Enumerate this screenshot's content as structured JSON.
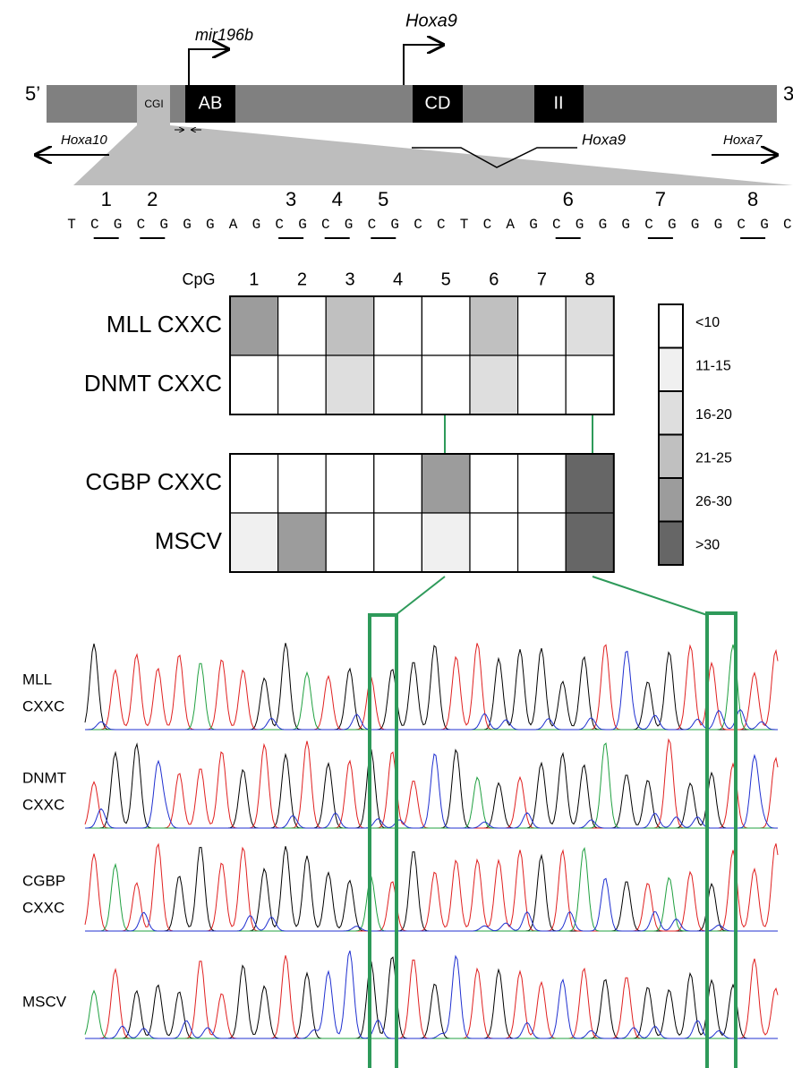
{
  "gene_map": {
    "five_prime": "5’",
    "three_prime": "3",
    "cgi": "CGI",
    "exons": [
      "AB",
      "CD",
      "II"
    ],
    "mir196b": "mir196b",
    "hoxa9_tss": "Hoxa9",
    "hoxa10": "Hoxa10",
    "hoxa9_transcript": "Hoxa9",
    "hoxa7": "Hoxa7"
  },
  "sequence": {
    "cpg_numbers": [
      1,
      2,
      3,
      4,
      5,
      6,
      7,
      8
    ],
    "letters": [
      "T",
      "C",
      "G",
      "C",
      "G",
      "G",
      "G",
      "A",
      "G",
      "C",
      "G",
      "C",
      "G",
      "C",
      "G",
      "C",
      "C",
      "T",
      "C",
      "A",
      "G",
      "C",
      "G",
      "G",
      "G",
      "C",
      "G",
      "G",
      "G",
      "C",
      "G",
      "C"
    ]
  },
  "heatmap": {
    "column_header": "CpG",
    "columns": [
      1,
      2,
      3,
      4,
      5,
      6,
      7,
      8
    ],
    "top_rows": [
      {
        "label": "MLL CXXC",
        "levels": [
          4,
          0,
          3,
          0,
          0,
          3,
          0,
          2
        ]
      },
      {
        "label": "DNMT CXXC",
        "levels": [
          0,
          0,
          2,
          0,
          0,
          2,
          0,
          0
        ]
      }
    ],
    "bottom_rows": [
      {
        "label": "CGBP CXXC",
        "levels": [
          0,
          0,
          0,
          0,
          4,
          0,
          0,
          5
        ]
      },
      {
        "label": "MSCV",
        "levels": [
          1,
          4,
          0,
          0,
          1,
          0,
          0,
          5
        ]
      }
    ],
    "legend": {
      "labels": [
        "<10",
        "11-15",
        "16-20",
        "21-25",
        "26-30",
        ">30"
      ],
      "colors": [
        "#ffffff",
        "#f0f0f0",
        "#dedede",
        "#c0c0c0",
        "#9c9c9c",
        "#666666"
      ]
    }
  },
  "chromatograms": {
    "labels": [
      [
        "MLL",
        "CXXC"
      ],
      [
        "DNMT",
        "CXXC"
      ],
      [
        "CGBP",
        "CXXC"
      ],
      [
        "MSCV"
      ]
    ]
  }
}
